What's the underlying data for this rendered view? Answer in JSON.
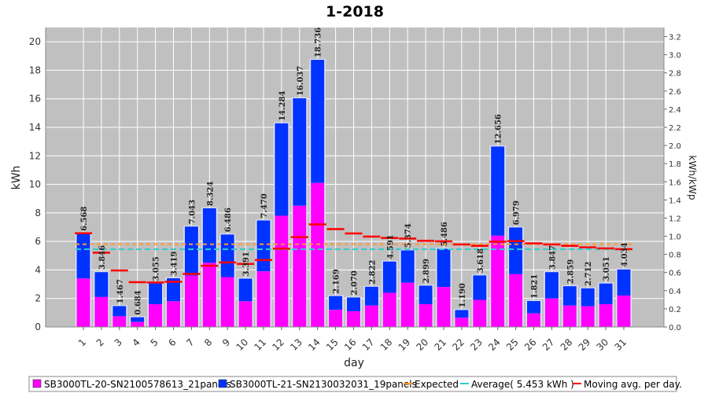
{
  "chart_data": {
    "type": "bar",
    "title": "1-2018",
    "xlabel": "day",
    "ylabel": "kWh",
    "ylabel_right": "kWh/kWp",
    "ylim": [
      0,
      21
    ],
    "ylim_right": [
      0,
      3.3
    ],
    "y_ticks": [
      0,
      2,
      4,
      6,
      8,
      10,
      12,
      14,
      16,
      18,
      20
    ],
    "y_ticks_right": [
      "0.0",
      "0.2",
      "0.4",
      "0.6",
      "0.8",
      "1.0",
      "1.2",
      "1.4",
      "1.6",
      "1.8",
      "2.0",
      "2.2",
      "2.4",
      "2.6",
      "2.8",
      "3.0",
      "3.2"
    ],
    "grid": true,
    "legend_position": "bottom",
    "categories": [
      "1",
      "2",
      "3",
      "4",
      "5",
      "6",
      "7",
      "8",
      "9",
      "10",
      "11",
      "12",
      "13",
      "14",
      "15",
      "16",
      "17",
      "18",
      "19",
      "20",
      "21",
      "22",
      "23",
      "24",
      "25",
      "26",
      "27",
      "28",
      "29",
      "30",
      "31"
    ],
    "series": [
      {
        "name": "SB3000TL-20-SN2100578613_21panels",
        "color": "#ff00ff",
        "values": [
          3.4,
          2.1,
          0.75,
          0.35,
          1.6,
          1.8,
          3.6,
          4.5,
          3.5,
          1.8,
          3.9,
          7.8,
          8.5,
          10.1,
          1.2,
          1.1,
          1.5,
          2.4,
          3.1,
          1.6,
          2.8,
          0.65,
          1.9,
          6.4,
          3.7,
          0.95,
          2.0,
          1.5,
          1.45,
          1.6,
          2.2
        ]
      },
      {
        "name": "SB3000TL-21-SN2130032031_19panels",
        "color": "#0033ff",
        "values": [
          3.168,
          1.746,
          0.717,
          0.334,
          1.455,
          1.619,
          3.443,
          3.824,
          2.986,
          1.591,
          3.57,
          6.484,
          7.537,
          8.636,
          0.969,
          0.97,
          1.322,
          2.191,
          2.274,
          1.299,
          2.686,
          0.54,
          1.718,
          6.256,
          3.279,
          0.871,
          1.847,
          1.359,
          1.262,
          1.451,
          1.834
        ]
      }
    ],
    "totals": [
      "6.568",
      "3.846",
      "1.467",
      "0.684",
      "3.055",
      "3.419",
      "7.043",
      "8.324",
      "6.486",
      "3.391",
      "7.470",
      "14.284",
      "16.037",
      "18.736",
      "2.169",
      "2.070",
      "2.822",
      "4.591",
      "5.374",
      "2.899",
      "5.486",
      "1.190",
      "3.618",
      "12.656",
      "6.979",
      "1.821",
      "3.847",
      "2.859",
      "2.712",
      "3.051",
      "4.034"
    ],
    "expected": {
      "name": "Expected",
      "color": "#ff9933",
      "value": 5.8
    },
    "average": {
      "name": "Average( 5.453 kWh )",
      "color": "#33cccc",
      "value": 5.453
    },
    "moving_avg": {
      "name": "Moving avg. per day.",
      "color": "#ff0000",
      "values": [
        6.57,
        5.21,
        3.96,
        3.14,
        3.12,
        3.17,
        3.72,
        4.29,
        4.53,
        4.42,
        4.69,
        5.49,
        6.3,
        7.19,
        6.86,
        6.56,
        6.34,
        6.24,
        6.2,
        6.04,
        6.01,
        5.79,
        5.69,
        5.98,
        6.02,
        5.86,
        5.79,
        5.69,
        5.59,
        5.51,
        5.46
      ]
    }
  }
}
